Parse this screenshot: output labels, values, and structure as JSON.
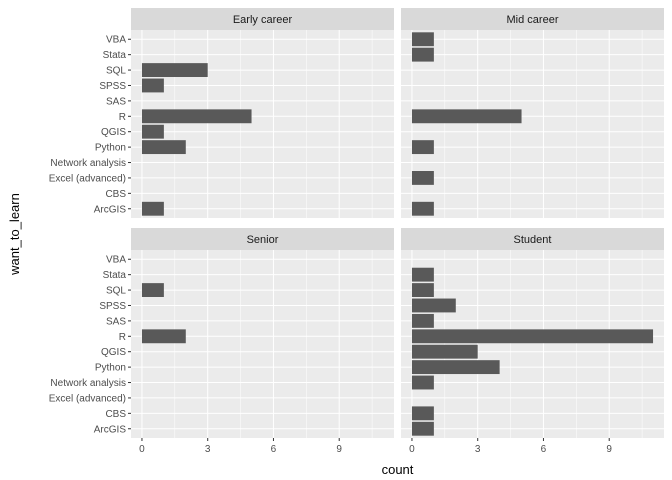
{
  "chart_data": {
    "type": "bar",
    "orientation": "horizontal",
    "facet_layout": "2x2",
    "xlabel": "count",
    "ylabel": "want_to_learn",
    "xlim": [
      -0.5,
      11.5
    ],
    "xticks": [
      0,
      3,
      6,
      9
    ],
    "grid": true,
    "categories": [
      "ArcGIS",
      "CBS",
      "Excel (advanced)",
      "Network analysis",
      "Python",
      "QGIS",
      "R",
      "SAS",
      "SPSS",
      "SQL",
      "Stata",
      "VBA"
    ],
    "colors": {
      "bar": "#595959",
      "panel": "#ebebeb",
      "strip": "#d9d9d9",
      "grid": "#ffffff"
    },
    "facets": [
      {
        "name": "Early career",
        "values": [
          1,
          0,
          0,
          0,
          2,
          1,
          5,
          0,
          1,
          3,
          0,
          0
        ]
      },
      {
        "name": "Mid career",
        "values": [
          1,
          0,
          1,
          0,
          1,
          0,
          5,
          0,
          0,
          0,
          1,
          1
        ]
      },
      {
        "name": "Senior",
        "values": [
          0,
          0,
          0,
          0,
          0,
          0,
          2,
          0,
          0,
          1,
          0,
          0
        ]
      },
      {
        "name": "Student",
        "values": [
          1,
          1,
          0,
          1,
          4,
          3,
          11,
          1,
          2,
          1,
          1,
          0
        ]
      }
    ]
  }
}
